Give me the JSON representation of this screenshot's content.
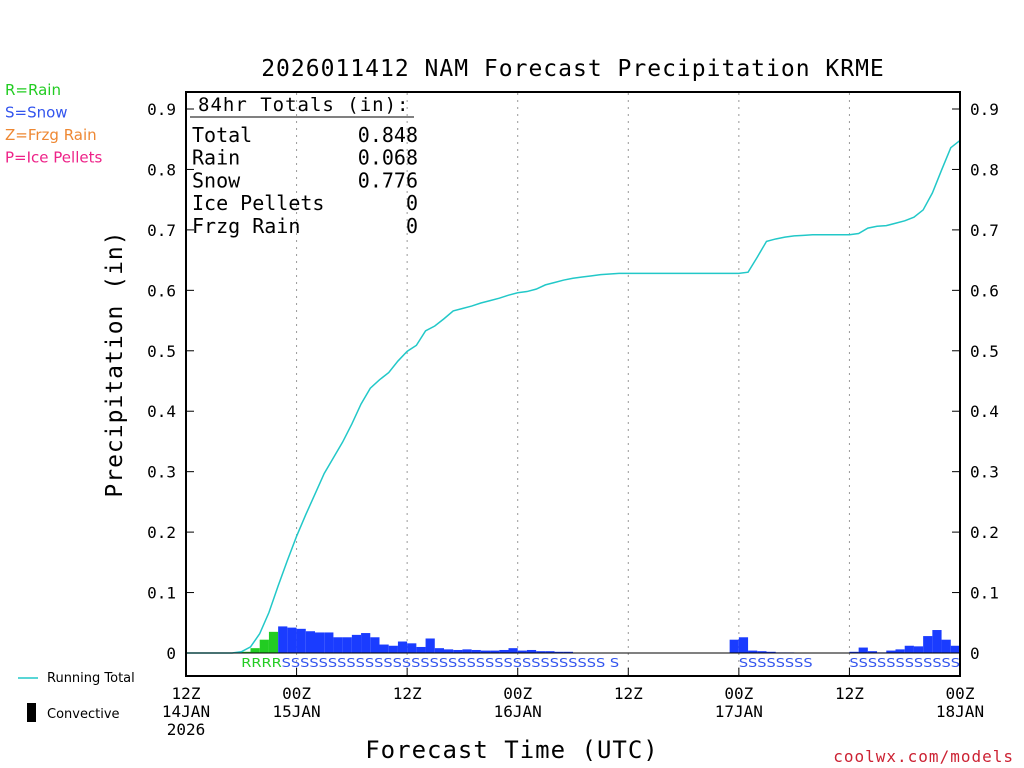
{
  "chart_data": {
    "type": "bar+line",
    "title": "2026011412 NAM Forecast Precipitation KRME",
    "ylabel": "Precipitation (in)",
    "xlabel": "Forecast Time (UTC)",
    "ylim": [
      0,
      0.9
    ],
    "xlim_hours": [
      0,
      84
    ],
    "yticks": [
      "0",
      "0.1",
      "0.2",
      "0.3",
      "0.4",
      "0.5",
      "0.6",
      "0.7",
      "0.8",
      "0.9"
    ],
    "xticks": [
      {
        "hour": 0,
        "lines": [
          "12Z",
          "14JAN",
          "2026"
        ]
      },
      {
        "hour": 12,
        "lines": [
          "00Z",
          "15JAN"
        ]
      },
      {
        "hour": 24,
        "lines": [
          "12Z"
        ]
      },
      {
        "hour": 36,
        "lines": [
          "00Z",
          "16JAN"
        ]
      },
      {
        "hour": 48,
        "lines": [
          "12Z"
        ]
      },
      {
        "hour": 60,
        "lines": [
          "00Z",
          "17JAN"
        ]
      },
      {
        "hour": 72,
        "lines": [
          "12Z"
        ]
      },
      {
        "hour": 84,
        "lines": [
          "00Z",
          "18JAN"
        ]
      }
    ],
    "legend_types": [
      {
        "label": "R=Rain",
        "color": "#22cc22"
      },
      {
        "label": "S=Snow",
        "color": "#3355ee"
      },
      {
        "label": "Z=Frzg Rain",
        "color": "#ee8833"
      },
      {
        "label": "P=Ice Pellets",
        "color": "#ee2288"
      }
    ],
    "totals": {
      "header": "84hr Totals (in):",
      "rows": [
        {
          "label": "Total",
          "value": "0.848"
        },
        {
          "label": "Rain",
          "value": "0.068"
        },
        {
          "label": "Snow",
          "value": "0.776"
        },
        {
          "label": "Ice Pellets",
          "value": "0"
        },
        {
          "label": "Frzg Rain",
          "value": "0"
        }
      ]
    },
    "bottom_legend": {
      "running_total": "Running Total",
      "convective": "Convective"
    },
    "credit": "coolwx.com/models",
    "bar_series": {
      "rain": {
        "color": "#22cc22",
        "start_hour": 6,
        "values": [
          0.002,
          0.008,
          0.022,
          0.035
        ]
      },
      "snow": {
        "color": "#1a3cff",
        "start_hour": 10,
        "values": [
          0.044,
          0.042,
          0.04,
          0.036,
          0.034,
          0.034,
          0.026,
          0.026,
          0.03,
          0.033,
          0.026,
          0.014,
          0.012,
          0.019,
          0.016,
          0.01,
          0.024,
          0.008,
          0.006,
          0.005,
          0.006,
          0.005,
          0.004,
          0.004,
          0.005,
          0.008,
          0.004,
          0.005,
          0.003,
          0.003,
          0.002,
          0.002,
          0,
          0,
          0,
          0,
          0,
          0,
          0,
          0,
          0,
          0,
          0,
          0,
          0,
          0,
          0,
          0,
          0,
          0.022,
          0.026,
          0.004,
          0.003,
          0.002,
          0.001,
          0.001,
          0,
          0,
          0,
          0,
          0,
          0,
          0.002,
          0.009,
          0.003,
          0.001,
          0.004,
          0.006,
          0.012,
          0.011,
          0.028,
          0.038,
          0.022,
          0.012
        ]
      }
    },
    "running_total": {
      "hours": [
        0,
        1,
        2,
        3,
        4,
        5,
        6,
        7,
        8,
        9,
        10,
        11,
        12,
        13,
        14,
        15,
        16,
        17,
        18,
        19,
        20,
        21,
        22,
        23,
        24,
        25,
        26,
        27,
        28,
        29,
        30,
        31,
        32,
        33,
        34,
        35,
        36,
        37,
        38,
        39,
        40,
        41,
        42,
        43,
        44,
        45,
        46,
        47,
        48,
        49,
        50,
        51,
        52,
        53,
        54,
        55,
        56,
        57,
        58,
        59,
        60,
        61,
        62,
        63,
        64,
        65,
        66,
        67,
        68,
        69,
        70,
        71,
        72,
        73,
        74,
        75,
        76,
        77,
        78,
        79,
        80,
        81,
        82,
        83,
        84
      ],
      "values": [
        0,
        0,
        0,
        0,
        0,
        0,
        0.002,
        0.01,
        0.032,
        0.067,
        0.111,
        0.153,
        0.193,
        0.229,
        0.263,
        0.297,
        0.323,
        0.349,
        0.379,
        0.412,
        0.438,
        0.452,
        0.464,
        0.483,
        0.499,
        0.509,
        0.533,
        0.541,
        0.553,
        0.566,
        0.57,
        0.574,
        0.579,
        0.583,
        0.587,
        0.592,
        0.596,
        0.598,
        0.602,
        0.609,
        0.613,
        0.617,
        0.62,
        0.622,
        0.624,
        0.626,
        0.627,
        0.628,
        0.628,
        0.628,
        0.628,
        0.628,
        0.628,
        0.628,
        0.628,
        0.628,
        0.628,
        0.628,
        0.628,
        0.628,
        0.628,
        0.63,
        0.655,
        0.681,
        0.685,
        0.688,
        0.69,
        0.691,
        0.692,
        0.692,
        0.692,
        0.692,
        0.692,
        0.694,
        0.703,
        0.706,
        0.707,
        0.711,
        0.715,
        0.721,
        0.733,
        0.761,
        0.799,
        0.836,
        0.848
      ]
    },
    "type_labels": [
      {
        "start_hour": 6,
        "text": "RRRRSSSSSSSSSSSSSSSSSSSSSSSSSSSSSSSSSSS S",
        "color_by_char": true
      },
      {
        "start_hour": 60,
        "text": "SSSSSSSS",
        "color_by_char": true
      },
      {
        "start_hour": 72,
        "text": "SSSSSSSSSSSS",
        "color_by_char": true
      }
    ]
  }
}
